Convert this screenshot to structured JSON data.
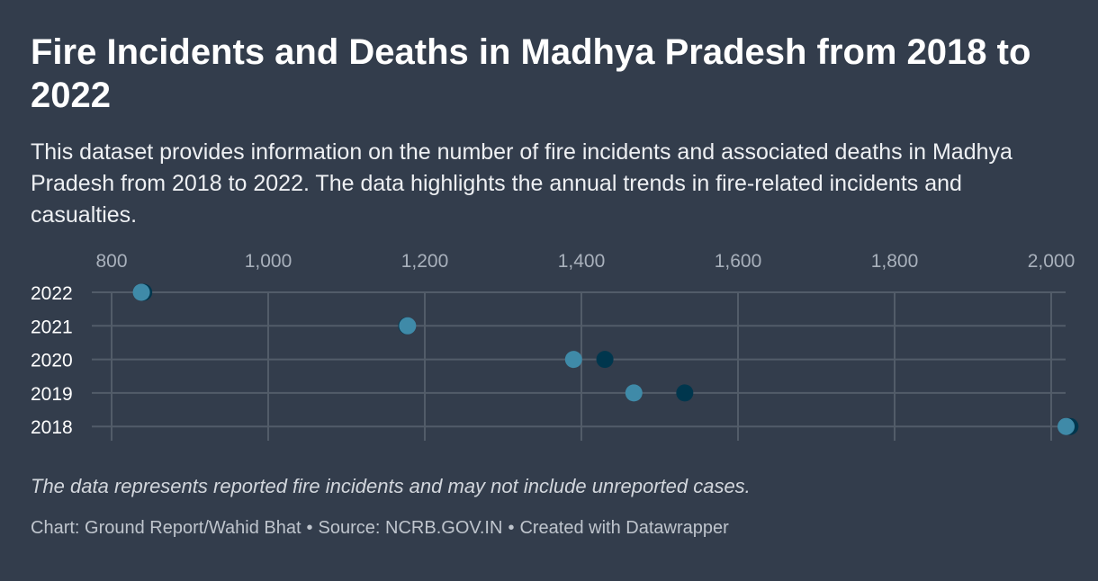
{
  "title": "Fire Incidents and Deaths in Madhya Pradesh from 2018 to 2022",
  "description": "This dataset provides information on the number of fire incidents and associated deaths in Madhya Pradesh from 2018 to 2022. The data highlights the annual trends in fire-related incidents and casualties.",
  "notes": "The data represents reported fire incidents and may not include unreported cases.",
  "byline": {
    "chart": "Chart: Ground Report/Wahid Bhat",
    "source": "Source: NCRB.GOV.IN",
    "created": "Created with Datawrapper",
    "separator": "•"
  },
  "colors": {
    "background": "#333d4c",
    "incidents": "#00364d",
    "deaths": "#3f8aa8",
    "grid": "#525c69"
  },
  "chart_data": {
    "type": "scatter",
    "subtype": "dot-plot",
    "xlim": [
      800,
      2050
    ],
    "x_ticks": [
      800,
      1000,
      1200,
      1400,
      1600,
      1800,
      2000
    ],
    "x_tick_labels": [
      "800",
      "1,000",
      "1,200",
      "1,400",
      "1,600",
      "1,800",
      "2,000"
    ],
    "categories": [
      "2022",
      "2021",
      "2020",
      "2019",
      "2018"
    ],
    "series": [
      {
        "name": "Fire Incidents",
        "color": "#00364d",
        "values": [
          841,
          1177,
          1430,
          1532,
          2024
        ]
      },
      {
        "name": "Deaths",
        "color": "#3f8aa8",
        "values": [
          838,
          1178,
          1390,
          1467,
          2019
        ]
      }
    ],
    "legend": "none",
    "grid": true
  }
}
